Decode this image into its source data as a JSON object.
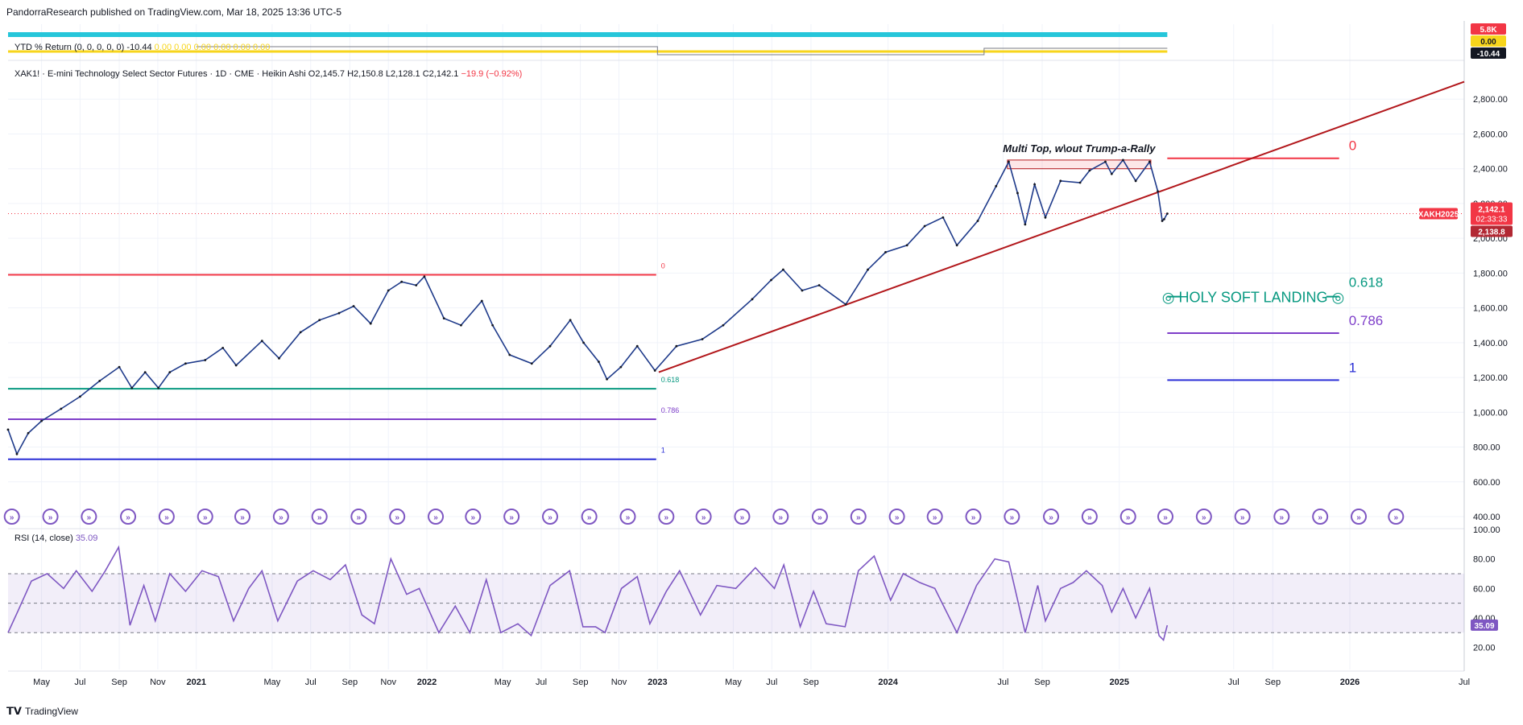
{
  "header": {
    "publisher_line": "PandorraResearch published on TradingView.com, Mar 18, 2025 13:36 UTC-5"
  },
  "footer": {
    "brand": "TradingView",
    "logo_icon": "tradingview-logo-icon"
  },
  "ytd_pane": {
    "label": "YTD % Return (0, 0, 0, 0, 0)",
    "value": "-10.44",
    "faded_values": "0.00  0.00  0.00  0.00  0.00  0.00",
    "axis_badges": [
      "5.8K",
      "0.00",
      "-10.44"
    ],
    "badge_colors": [
      "#f23645",
      "#f7d51c",
      "#131722"
    ]
  },
  "main_legend": {
    "symbol": "XAK1! · E-mini Technology Select Sector Futures · 1D · CME · Heikin Ashi",
    "open": "O2,145.7",
    "high": "H2,150.8",
    "low": "L2,128.1",
    "close": "C2,142.1",
    "change": "−19.9 (−0.92%)"
  },
  "price_badges": {
    "ticker": "XAKH2025",
    "price": "2,142.1",
    "countdown": "02:33:33",
    "secondary": "2,138.8"
  },
  "annotations": {
    "multi_top": "Multi Top, w\\out Trump-a-Rally",
    "soft_landing": "HOLY SOFT LANDING",
    "soft_landing_icon": "target-icon"
  },
  "chart_data": {
    "type": "line",
    "title": "XAK1! · E-mini Technology Select Sector Futures · 1D · CME · Heikin Ashi",
    "x_start": "2021-03-08",
    "x_ticks": [
      {
        "label": "May",
        "date": "2020-05-01"
      },
      {
        "label": "Jul",
        "date": "2020-07-01"
      },
      {
        "label": "Sep",
        "date": "2020-09-01"
      },
      {
        "label": "Nov",
        "date": "2020-11-01"
      },
      {
        "label": "2021",
        "date": "2021-01-01"
      },
      {
        "label": "May",
        "date": "2021-05-01"
      },
      {
        "label": "Jul",
        "date": "2021-07-01"
      },
      {
        "label": "Sep",
        "date": "2021-09-01"
      },
      {
        "label": "Nov",
        "date": "2021-11-01"
      },
      {
        "label": "2022",
        "date": "2022-01-01"
      },
      {
        "label": "May",
        "date": "2022-05-01"
      },
      {
        "label": "Jul",
        "date": "2022-07-01"
      },
      {
        "label": "Sep",
        "date": "2022-09-01"
      },
      {
        "label": "Nov",
        "date": "2022-11-01"
      },
      {
        "label": "2023",
        "date": "2023-01-01"
      },
      {
        "label": "May",
        "date": "2023-05-01"
      },
      {
        "label": "Jul",
        "date": "2023-07-01"
      },
      {
        "label": "Sep",
        "date": "2023-09-01"
      },
      {
        "label": "2024",
        "date": "2024-01-01"
      },
      {
        "label": "Jul",
        "date": "2024-07-01"
      },
      {
        "label": "Sep",
        "date": "2024-09-01"
      },
      {
        "label": "2025",
        "date": "2025-01-01"
      },
      {
        "label": "Jul",
        "date": "2025-07-01"
      },
      {
        "label": "Sep",
        "date": "2025-09-01"
      },
      {
        "label": "2026",
        "date": "2026-01-01"
      },
      {
        "label": "Jul",
        "date": "2026-07-01"
      }
    ],
    "x_range": [
      "2020-03-09",
      "2026-07-01"
    ],
    "y_range": [
      340,
      3000
    ],
    "y_ticks": [
      400,
      600,
      800,
      1000,
      1200,
      1400,
      1600,
      1800,
      2000,
      2200,
      2400,
      2600,
      2800
    ],
    "y_tick_labels": [
      "400.00",
      "600.00",
      "800.00",
      "1,000.00",
      "1,200.00",
      "1,400.00",
      "1,600.00",
      "1,800.00",
      "2,000.00",
      "2,200.00",
      "2,400.00",
      "2,600.00",
      "2,800.00"
    ],
    "price_series": {
      "name": "XAK1!",
      "points": [
        [
          "2020-03-09",
          900
        ],
        [
          "2020-03-23",
          760
        ],
        [
          "2020-04-10",
          880
        ],
        [
          "2020-05-01",
          950
        ],
        [
          "2020-06-01",
          1020
        ],
        [
          "2020-07-01",
          1090
        ],
        [
          "2020-08-01",
          1180
        ],
        [
          "2020-09-01",
          1260
        ],
        [
          "2020-09-21",
          1140
        ],
        [
          "2020-10-12",
          1230
        ],
        [
          "2020-11-02",
          1140
        ],
        [
          "2020-11-20",
          1230
        ],
        [
          "2020-12-15",
          1280
        ],
        [
          "2021-01-15",
          1300
        ],
        [
          "2021-02-12",
          1370
        ],
        [
          "2021-03-05",
          1270
        ],
        [
          "2021-04-15",
          1410
        ],
        [
          "2021-05-12",
          1310
        ],
        [
          "2021-06-15",
          1460
        ],
        [
          "2021-07-15",
          1530
        ],
        [
          "2021-08-15",
          1570
        ],
        [
          "2021-09-07",
          1610
        ],
        [
          "2021-10-04",
          1510
        ],
        [
          "2021-11-01",
          1700
        ],
        [
          "2021-11-22",
          1750
        ],
        [
          "2021-12-15",
          1730
        ],
        [
          "2021-12-28",
          1780
        ],
        [
          "2022-01-28",
          1540
        ],
        [
          "2022-02-24",
          1500
        ],
        [
          "2022-03-29",
          1640
        ],
        [
          "2022-04-15",
          1500
        ],
        [
          "2022-05-12",
          1330
        ],
        [
          "2022-06-16",
          1280
        ],
        [
          "2022-07-15",
          1380
        ],
        [
          "2022-08-16",
          1530
        ],
        [
          "2022-09-06",
          1400
        ],
        [
          "2022-09-30",
          1290
        ],
        [
          "2022-10-13",
          1190
        ],
        [
          "2022-11-04",
          1260
        ],
        [
          "2022-11-30",
          1380
        ],
        [
          "2022-12-28",
          1240
        ],
        [
          "2023-01-31",
          1380
        ],
        [
          "2023-03-13",
          1420
        ],
        [
          "2023-04-15",
          1500
        ],
        [
          "2023-05-31",
          1650
        ],
        [
          "2023-06-30",
          1760
        ],
        [
          "2023-07-19",
          1820
        ],
        [
          "2023-08-18",
          1700
        ],
        [
          "2023-09-14",
          1730
        ],
        [
          "2023-10-26",
          1620
        ],
        [
          "2023-11-30",
          1820
        ],
        [
          "2023-12-28",
          1920
        ],
        [
          "2024-01-31",
          1960
        ],
        [
          "2024-02-28",
          2070
        ],
        [
          "2024-03-28",
          2120
        ],
        [
          "2024-04-19",
          1960
        ],
        [
          "2024-05-22",
          2100
        ],
        [
          "2024-06-20",
          2300
        ],
        [
          "2024-07-10",
          2440
        ],
        [
          "2024-07-24",
          2260
        ],
        [
          "2024-08-05",
          2080
        ],
        [
          "2024-08-20",
          2310
        ],
        [
          "2024-09-06",
          2120
        ],
        [
          "2024-09-30",
          2330
        ],
        [
          "2024-10-31",
          2320
        ],
        [
          "2024-11-15",
          2390
        ],
        [
          "2024-12-10",
          2440
        ],
        [
          "2024-12-20",
          2370
        ],
        [
          "2025-01-07",
          2450
        ],
        [
          "2025-01-27",
          2330
        ],
        [
          "2025-02-18",
          2440
        ],
        [
          "2025-03-03",
          2270
        ],
        [
          "2025-03-10",
          2100
        ],
        [
          "2025-03-13",
          2110
        ],
        [
          "2025-03-18",
          2142
        ]
      ]
    },
    "trendline": {
      "from": [
        "2023-01-03",
        1230
      ],
      "to": [
        "2026-07-01",
        2900
      ],
      "color": "#b2171b"
    },
    "last_price_line": {
      "value": 2142.1,
      "color": "#f23645"
    },
    "multi_top_box": {
      "from": "2024-07-08",
      "to": "2025-02-20",
      "low": 2400,
      "high": 2450
    },
    "fib_left": {
      "from": "2020-03-09",
      "to": "2022-12-30",
      "levels": [
        {
          "label": "0",
          "value": 1790,
          "color": "#f23645"
        },
        {
          "label": "0.618",
          "value": 1135,
          "color": "#089981"
        },
        {
          "label": "0.786",
          "value": 960,
          "color": "#7e3ec9"
        },
        {
          "label": "1",
          "value": 730,
          "color": "#2a2ed6"
        }
      ]
    },
    "fib_right": {
      "from": "2025-03-18",
      "to": "2025-12-15",
      "levels": [
        {
          "label": "0",
          "value": 2460,
          "color": "#f23645"
        },
        {
          "label": "0.618",
          "value": 1665,
          "color": "#089981"
        },
        {
          "label": "0.786",
          "value": 1455,
          "color": "#7e3ec9"
        },
        {
          "label": "1",
          "value": 1185,
          "color": "#2a2ed6"
        }
      ]
    },
    "rsi": {
      "name": "RSI (14, close)",
      "last": "35.09",
      "y_range": [
        5,
        100
      ],
      "y_ticks": [
        20,
        40,
        60,
        80,
        100
      ],
      "y_tick_labels": [
        "20.00",
        "40.00",
        "60.00",
        "80.00",
        "100.00"
      ],
      "upper_band": 70,
      "middle_band": 50,
      "lower_band": 30,
      "points": [
        [
          "2020-03-09",
          30
        ],
        [
          "2020-03-25",
          45
        ],
        [
          "2020-04-15",
          65
        ],
        [
          "2020-05-10",
          70
        ],
        [
          "2020-06-05",
          60
        ],
        [
          "2020-06-25",
          72
        ],
        [
          "2020-07-20",
          58
        ],
        [
          "2020-08-10",
          72
        ],
        [
          "2020-08-31",
          88
        ],
        [
          "2020-09-18",
          35
        ],
        [
          "2020-10-10",
          62
        ],
        [
          "2020-10-28",
          38
        ],
        [
          "2020-11-20",
          70
        ],
        [
          "2020-12-15",
          58
        ],
        [
          "2021-01-10",
          72
        ],
        [
          "2021-02-05",
          68
        ],
        [
          "2021-03-01",
          38
        ],
        [
          "2021-03-25",
          60
        ],
        [
          "2021-04-15",
          72
        ],
        [
          "2021-05-10",
          38
        ],
        [
          "2021-06-10",
          65
        ],
        [
          "2021-07-05",
          72
        ],
        [
          "2021-08-01",
          66
        ],
        [
          "2021-08-25",
          76
        ],
        [
          "2021-09-20",
          42
        ],
        [
          "2021-10-10",
          36
        ],
        [
          "2021-11-05",
          80
        ],
        [
          "2021-11-30",
          56
        ],
        [
          "2021-12-20",
          60
        ],
        [
          "2022-01-20",
          30
        ],
        [
          "2022-02-15",
          48
        ],
        [
          "2022-03-10",
          30
        ],
        [
          "2022-04-05",
          66
        ],
        [
          "2022-04-28",
          30
        ],
        [
          "2022-05-25",
          36
        ],
        [
          "2022-06-15",
          28
        ],
        [
          "2022-07-15",
          62
        ],
        [
          "2022-08-15",
          72
        ],
        [
          "2022-09-05",
          34
        ],
        [
          "2022-09-25",
          34
        ],
        [
          "2022-10-10",
          30
        ],
        [
          "2022-11-05",
          60
        ],
        [
          "2022-11-30",
          68
        ],
        [
          "2022-12-20",
          36
        ],
        [
          "2023-01-15",
          58
        ],
        [
          "2023-02-05",
          72
        ],
        [
          "2023-03-10",
          42
        ],
        [
          "2023-04-05",
          62
        ],
        [
          "2023-05-05",
          60
        ],
        [
          "2023-06-05",
          74
        ],
        [
          "2023-07-05",
          60
        ],
        [
          "2023-07-20",
          76
        ],
        [
          "2023-08-15",
          34
        ],
        [
          "2023-09-05",
          58
        ],
        [
          "2023-09-25",
          36
        ],
        [
          "2023-10-25",
          34
        ],
        [
          "2023-11-15",
          72
        ],
        [
          "2023-12-10",
          82
        ],
        [
          "2024-01-05",
          52
        ],
        [
          "2024-01-25",
          70
        ],
        [
          "2024-02-20",
          64
        ],
        [
          "2024-03-15",
          60
        ],
        [
          "2024-04-19",
          30
        ],
        [
          "2024-05-20",
          62
        ],
        [
          "2024-06-18",
          80
        ],
        [
          "2024-07-10",
          78
        ],
        [
          "2024-08-05",
          30
        ],
        [
          "2024-08-25",
          62
        ],
        [
          "2024-09-06",
          38
        ],
        [
          "2024-09-30",
          60
        ],
        [
          "2024-10-20",
          64
        ],
        [
          "2024-11-10",
          72
        ],
        [
          "2024-12-05",
          62
        ],
        [
          "2024-12-20",
          44
        ],
        [
          "2025-01-07",
          60
        ],
        [
          "2025-01-27",
          40
        ],
        [
          "2025-02-18",
          60
        ],
        [
          "2025-03-05",
          28
        ],
        [
          "2025-03-12",
          25
        ],
        [
          "2025-03-18",
          35
        ]
      ]
    },
    "ytd_series": {
      "name": "YTD % Return",
      "last": -10.44
    },
    "signal_markers": {
      "icon": "fast-forward-circle-icon",
      "color": "#7e57c2",
      "dates": [
        "2020-03-15",
        "2020-05-15",
        "2020-07-15",
        "2020-09-15",
        "2020-11-15",
        "2021-01-15",
        "2021-03-15",
        "2021-05-15",
        "2021-07-15",
        "2021-09-15",
        "2021-11-15",
        "2022-01-15",
        "2022-03-15",
        "2022-05-15",
        "2022-07-15",
        "2022-09-15",
        "2022-11-15",
        "2023-01-15",
        "2023-03-15",
        "2023-05-15",
        "2023-07-15",
        "2023-09-15",
        "2023-11-15",
        "2024-01-15",
        "2024-03-15",
        "2024-05-15",
        "2024-07-15",
        "2024-09-15",
        "2024-11-15",
        "2025-01-15",
        "2025-03-15",
        "2025-05-15",
        "2025-07-15",
        "2025-09-15",
        "2025-11-15",
        "2026-01-15",
        "2026-03-15"
      ]
    }
  }
}
